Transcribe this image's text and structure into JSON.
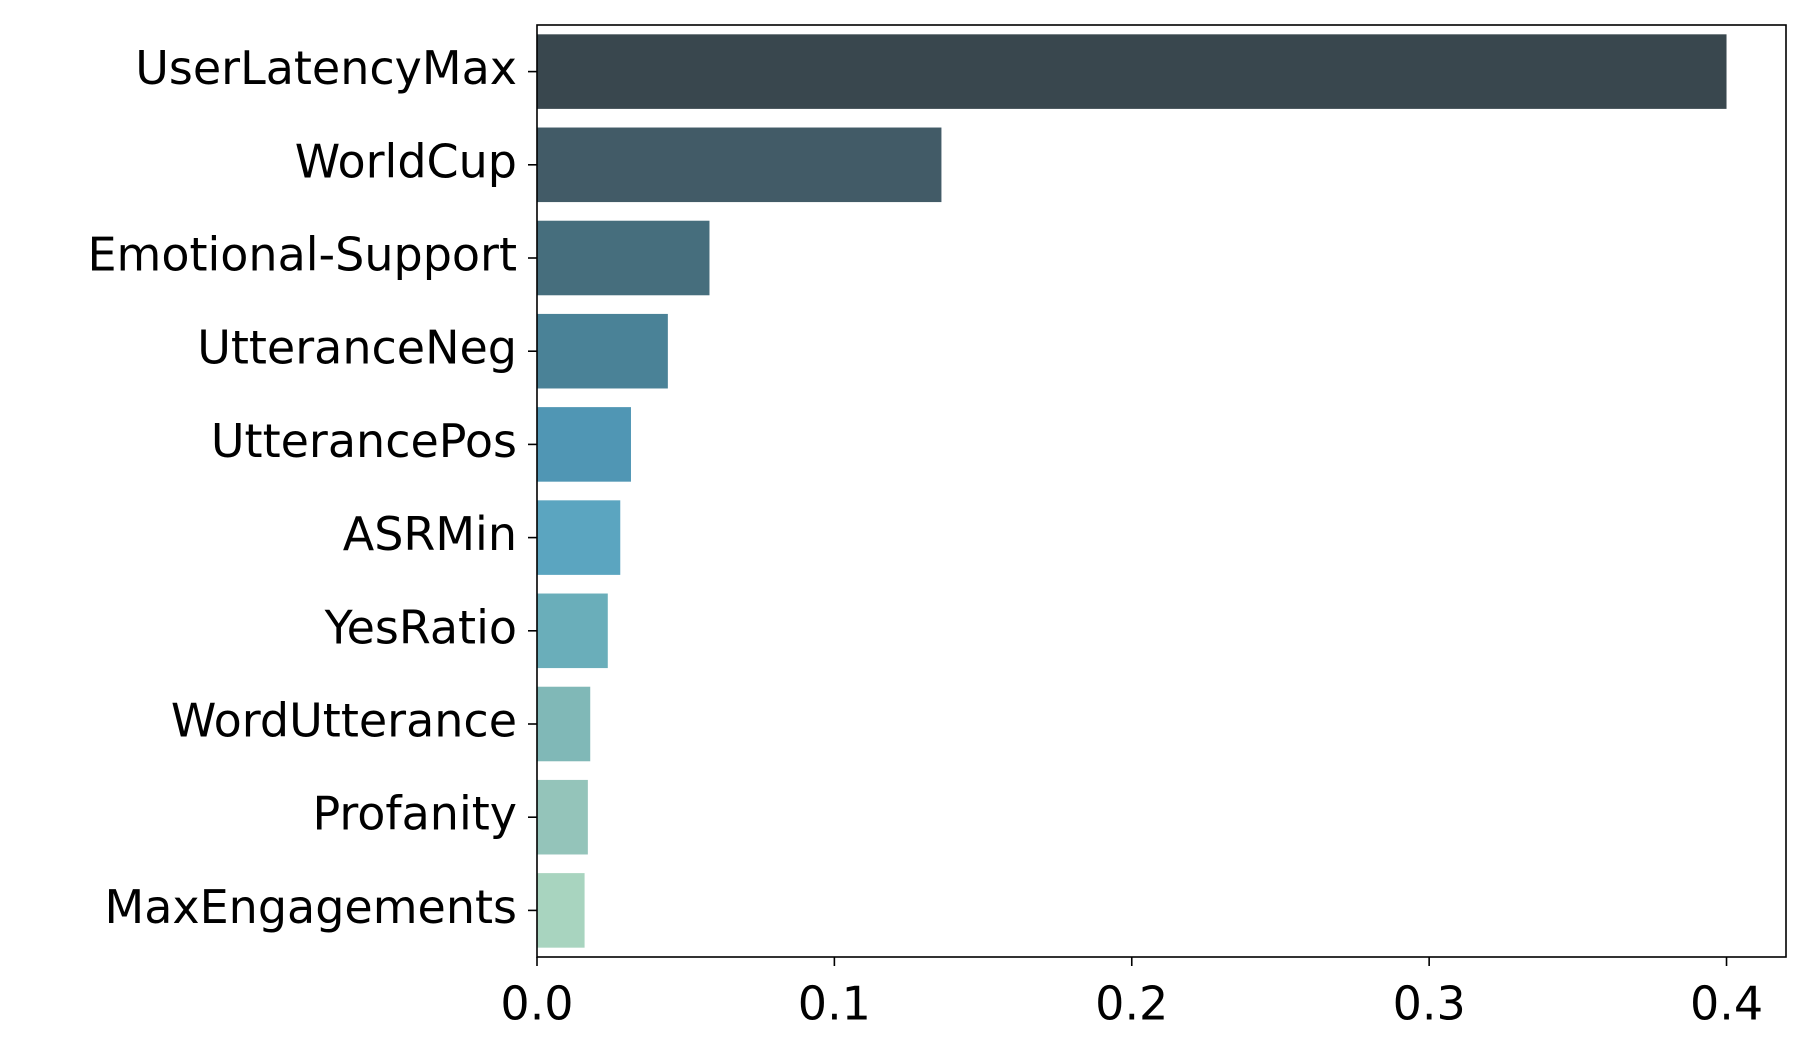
{
  "chart_data": {
    "type": "barh",
    "categories": [
      "UserLatencyMax",
      "WorldCup",
      "Emotional-Support",
      "UtteranceNeg",
      "UtterancePos",
      "ASRMin",
      "YesRatio",
      "WordUtterance",
      "Profanity",
      "MaxEngagements"
    ],
    "values": [
      0.4,
      0.136,
      0.058,
      0.044,
      0.0316,
      0.028,
      0.0238,
      0.0179,
      0.0171,
      0.016
    ],
    "colors": [
      "#39474e",
      "#425b67",
      "#466e7d",
      "#4a8297",
      "#5096b4",
      "#5ba5c0",
      "#6aaeba",
      "#80b8b7",
      "#94c4ba",
      "#a8d4bf"
    ],
    "xlim": [
      0,
      0.42
    ],
    "xticks": [
      {
        "value": 0,
        "label": "0.0"
      },
      0.1,
      0.2,
      0.3,
      0.4
    ]
  }
}
